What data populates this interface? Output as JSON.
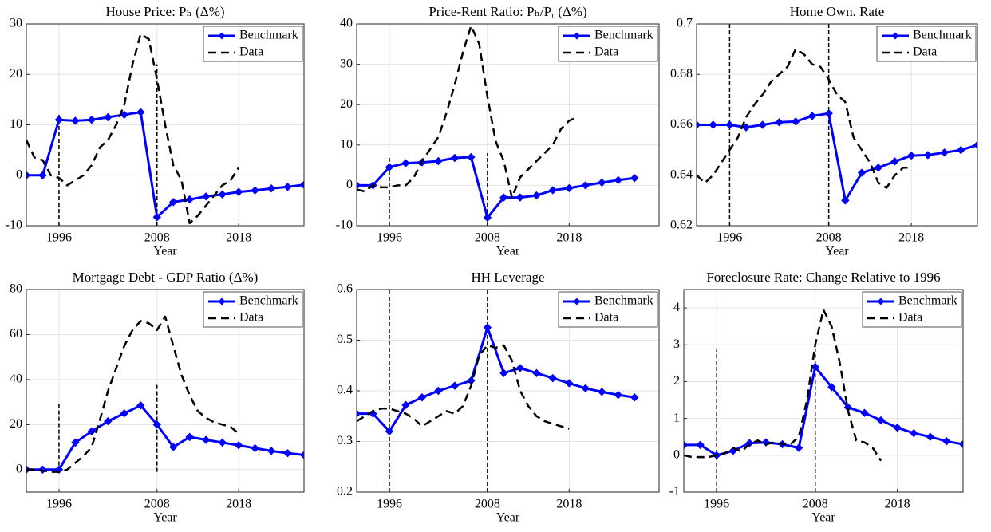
{
  "chart_data": [
    {
      "type": "line",
      "title": "House Price: Pₕ (Δ%)",
      "xlabel": "Year",
      "xlim": [
        1992,
        2026
      ],
      "xticks": [
        1996,
        2008,
        2018
      ],
      "ylim": [
        -10,
        30
      ],
      "yticks": [
        -10,
        0,
        10,
        20,
        30
      ],
      "grid": true,
      "legend": "upper right",
      "series": [
        {
          "name": "Benchmark",
          "color": "#0000ff",
          "x": [
            1992,
            1994,
            1996,
            1998,
            2000,
            2002,
            2004,
            2006,
            2008,
            2010,
            2012,
            2014,
            2016,
            2018,
            2020,
            2022,
            2024,
            2026
          ],
          "values": [
            0,
            0,
            11,
            10.8,
            11,
            11.5,
            12,
            12.5,
            -8.3,
            -5.3,
            -4.8,
            -4.2,
            -3.8,
            -3.3,
            -3,
            -2.6,
            -2.3,
            -1.9
          ]
        },
        {
          "name": "Data",
          "color": "#000000",
          "x": [
            1992,
            1993,
            1994,
            1995,
            1996,
            1997,
            1998,
            1999,
            2000,
            2001,
            2002,
            2003,
            2004,
            2005,
            2006,
            2007,
            2008,
            2009,
            2010,
            2011,
            2012,
            2013,
            2014,
            2015,
            2016,
            2017,
            2018
          ],
          "values": [
            7,
            3.5,
            3,
            0,
            -0.5,
            -2,
            -1,
            0,
            2,
            5.5,
            7,
            10,
            14,
            22,
            28,
            27,
            19,
            10,
            2,
            -1,
            -9.5,
            -8,
            -6,
            -4,
            -2,
            -1,
            1.5
          ]
        }
      ],
      "vlines": [
        {
          "x": 1996,
          "y": [
            -10,
            12
          ]
        },
        {
          "x": 2008,
          "y": [
            -10,
            22
          ]
        }
      ]
    },
    {
      "type": "line",
      "title": "Price-Rent Ratio: Pₕ/Pᵣ (Δ%)",
      "xlabel": "Year",
      "xlim": [
        1992,
        2029
      ],
      "xticks": [
        1996,
        2008,
        2018
      ],
      "ylim": [
        -10,
        40
      ],
      "yticks": [
        -10,
        0,
        10,
        20,
        30,
        40
      ],
      "grid": true,
      "legend": "upper right",
      "series": [
        {
          "name": "Benchmark",
          "color": "#0000ff",
          "x": [
            1992,
            1994,
            1996,
            1998,
            2000,
            2002,
            2004,
            2006,
            2008,
            2010,
            2012,
            2014,
            2016,
            2018,
            2020,
            2022,
            2024,
            2026
          ],
          "values": [
            0,
            0,
            4.5,
            5.5,
            5.7,
            6,
            6.8,
            7,
            -8,
            -3,
            -3,
            -2.5,
            -1.2,
            -0.7,
            0,
            0.7,
            1.3,
            1.8
          ]
        },
        {
          "name": "Data",
          "color": "#000000",
          "x": [
            1992,
            1993,
            1994,
            1995,
            1996,
            1997,
            1998,
            1999,
            2000,
            2001,
            2002,
            2003,
            2004,
            2005,
            2006,
            2007,
            2008,
            2009,
            2010,
            2011,
            2012,
            2013,
            2014,
            2015,
            2016,
            2017,
            2018,
            2019
          ],
          "values": [
            -1,
            -1.5,
            0,
            -0.5,
            -0.5,
            0,
            0,
            2,
            6,
            9,
            12,
            18,
            25,
            33,
            39.5,
            35,
            22,
            11,
            6,
            -3,
            2,
            4,
            6,
            8,
            10,
            14,
            16,
            17
          ]
        }
      ],
      "vlines": [
        {
          "x": 1996,
          "y": [
            -10,
            7
          ]
        },
        {
          "x": 2008,
          "y": [
            -10,
            8
          ]
        }
      ]
    },
    {
      "type": "line",
      "title": "Home Own. Rate",
      "xlabel": "Year",
      "xlim": [
        1992,
        2026
      ],
      "xticks": [
        1996,
        2008,
        2018
      ],
      "ylim": [
        0.62,
        0.7
      ],
      "yticks": [
        0.62,
        0.64,
        0.66,
        0.68,
        0.7
      ],
      "grid": true,
      "legend": "upper right",
      "series": [
        {
          "name": "Benchmark",
          "color": "#0000ff",
          "x": [
            1992,
            1994,
            1996,
            1998,
            2000,
            2002,
            2004,
            2006,
            2008,
            2010,
            2012,
            2014,
            2016,
            2018,
            2020,
            2022,
            2024,
            2026
          ],
          "values": [
            0.66,
            0.66,
            0.66,
            0.659,
            0.66,
            0.661,
            0.6613,
            0.6635,
            0.6645,
            0.63,
            0.641,
            0.643,
            0.6455,
            0.6478,
            0.648,
            0.649,
            0.65,
            0.652
          ]
        },
        {
          "name": "Data",
          "color": "#000000",
          "x": [
            1992,
            1993,
            1994,
            1995,
            1996,
            1997,
            1998,
            1999,
            2000,
            2001,
            2002,
            2003,
            2004,
            2005,
            2006,
            2007,
            2008,
            2009,
            2010,
            2011,
            2012,
            2013,
            2014,
            2015,
            2016,
            2017,
            2018
          ],
          "values": [
            0.64,
            0.637,
            0.64,
            0.645,
            0.65,
            0.655,
            0.663,
            0.668,
            0.672,
            0.677,
            0.68,
            0.683,
            0.69,
            0.688,
            0.684,
            0.683,
            0.678,
            0.672,
            0.669,
            0.655,
            0.65,
            0.645,
            0.637,
            0.635,
            0.64,
            0.643,
            0.643
          ]
        }
      ],
      "vlines": [
        {
          "x": 1996,
          "y": [
            0.62,
            0.7
          ]
        },
        {
          "x": 2008,
          "y": [
            0.62,
            0.7
          ]
        }
      ]
    },
    {
      "type": "line",
      "title": "Mortgage Debt - GDP Ratio (Δ%)",
      "xlabel": "Year",
      "xlim": [
        1992,
        2026
      ],
      "xticks": [
        1996,
        2008,
        2018
      ],
      "ylim": [
        -10,
        80
      ],
      "yticks": [
        0,
        20,
        40,
        60,
        80
      ],
      "grid": true,
      "legend": "upper right",
      "series": [
        {
          "name": "Benchmark",
          "color": "#0000ff",
          "x": [
            1992,
            1994,
            1996,
            1998,
            2000,
            2002,
            2004,
            2006,
            2008,
            2010,
            2012,
            2014,
            2016,
            2018,
            2020,
            2022,
            2024,
            2026
          ],
          "values": [
            0,
            0,
            0,
            12,
            17,
            21.5,
            25,
            28.5,
            20,
            10,
            14.5,
            13.2,
            12,
            10.8,
            9.5,
            8.3,
            7.3,
            6.5
          ]
        },
        {
          "name": "Data",
          "color": "#000000",
          "x": [
            1992,
            1993,
            1994,
            1995,
            1996,
            1997,
            1998,
            1999,
            2000,
            2001,
            2002,
            2003,
            2004,
            2005,
            2006,
            2007,
            2008,
            2009,
            2010,
            2011,
            2012,
            2013,
            2014,
            2015,
            2016,
            2017,
            2018
          ],
          "values": [
            0,
            0,
            -0.5,
            -1,
            -1,
            0,
            3,
            6,
            10,
            22,
            35,
            45,
            55,
            62,
            66,
            65,
            62,
            68,
            55,
            42,
            33,
            26,
            23,
            21,
            20,
            19,
            16
          ]
        }
      ],
      "vlines": [
        {
          "x": 1996,
          "y": [
            -1,
            29
          ]
        },
        {
          "x": 2008,
          "y": [
            -1,
            38
          ]
        }
      ]
    },
    {
      "type": "line",
      "title": "HH Leverage",
      "xlabel": "Year",
      "xlim": [
        1992,
        2029
      ],
      "xticks": [
        1996,
        2008,
        2018
      ],
      "ylim": [
        0.2,
        0.6
      ],
      "yticks": [
        0.2,
        0.3,
        0.4,
        0.5,
        0.6
      ],
      "grid": true,
      "legend": "upper right",
      "series": [
        {
          "name": "Benchmark",
          "color": "#0000ff",
          "x": [
            1992,
            1994,
            1996,
            1998,
            2000,
            2002,
            2004,
            2006,
            2008,
            2010,
            2012,
            2014,
            2016,
            2018,
            2020,
            2022,
            2024,
            2026
          ],
          "values": [
            0.355,
            0.355,
            0.32,
            0.372,
            0.387,
            0.4,
            0.41,
            0.42,
            0.525,
            0.435,
            0.445,
            0.435,
            0.425,
            0.415,
            0.405,
            0.398,
            0.392,
            0.387
          ]
        },
        {
          "name": "Data",
          "color": "#000000",
          "x": [
            1992,
            1993,
            1994,
            1995,
            1996,
            1997,
            1998,
            1999,
            2000,
            2001,
            2002,
            2003,
            2004,
            2005,
            2006,
            2007,
            2008,
            2009,
            2010,
            2011,
            2012,
            2013,
            2014,
            2015,
            2016,
            2017,
            2018
          ],
          "values": [
            0.34,
            0.35,
            0.36,
            0.365,
            0.365,
            0.36,
            0.355,
            0.345,
            0.33,
            0.34,
            0.35,
            0.36,
            0.355,
            0.37,
            0.41,
            0.47,
            0.49,
            0.485,
            0.49,
            0.46,
            0.4,
            0.37,
            0.35,
            0.34,
            0.335,
            0.33,
            0.325
          ]
        }
      ],
      "vlines": [
        {
          "x": 1996,
          "y": [
            0.2,
            0.6
          ]
        },
        {
          "x": 2008,
          "y": [
            0.2,
            0.6
          ]
        }
      ]
    },
    {
      "type": "line",
      "title": "Foreclosure Rate: Change Relative to 1996",
      "xlabel": "Year",
      "xlim": [
        1992,
        2026
      ],
      "xticks": [
        1996,
        2008,
        2018
      ],
      "ylim": [
        -1,
        4.5
      ],
      "yticks": [
        -1,
        0,
        1,
        2,
        3,
        4
      ],
      "grid": true,
      "legend": "upper right",
      "series": [
        {
          "name": "Benchmark",
          "color": "#0000ff",
          "x": [
            1992,
            1994,
            1996,
            1998,
            2000,
            2002,
            2004,
            2006,
            2008,
            2010,
            2012,
            2014,
            2016,
            2018,
            2020,
            2022,
            2024,
            2026
          ],
          "values": [
            0.28,
            0.28,
            0,
            0.12,
            0.33,
            0.35,
            0.3,
            0.2,
            2.4,
            1.85,
            1.3,
            1.15,
            0.95,
            0.75,
            0.6,
            0.5,
            0.38,
            0.3
          ]
        },
        {
          "name": "Data",
          "color": "#000000",
          "x": [
            1992,
            1993,
            1994,
            1995,
            1996,
            1997,
            1998,
            1999,
            2000,
            2001,
            2002,
            2003,
            2004,
            2005,
            2006,
            2007,
            2008,
            2009,
            2010,
            2011,
            2012,
            2013,
            2014,
            2015,
            2016
          ],
          "values": [
            0,
            -0.05,
            -0.05,
            -0.05,
            0,
            0.05,
            0.2,
            0.1,
            0.3,
            0.4,
            0.3,
            0.35,
            0.3,
            0.3,
            0.5,
            1.5,
            3,
            3.95,
            3.5,
            2.5,
            1.2,
            0.4,
            0.35,
            0.2,
            -0.15
          ]
        }
      ],
      "vlines": [
        {
          "x": 1996,
          "y": [
            -1,
            2.9
          ]
        },
        {
          "x": 2008,
          "y": [
            -1,
            2.9
          ]
        }
      ]
    }
  ]
}
